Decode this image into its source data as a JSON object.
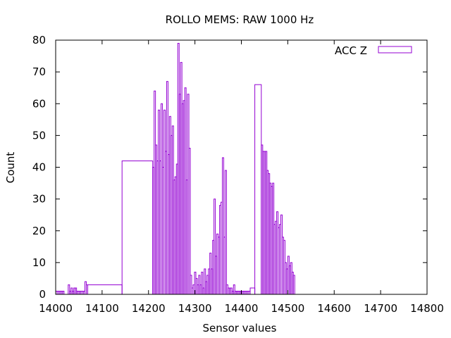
{
  "chart_data": {
    "type": "bar",
    "title": "ROLLO MEMS: RAW 1000 Hz",
    "xlabel": "Sensor values",
    "ylabel": "Count",
    "xlim": [
      14000,
      14800
    ],
    "ylim": [
      0,
      80
    ],
    "xticks": [
      14000,
      14100,
      14200,
      14300,
      14400,
      14500,
      14600,
      14700,
      14800
    ],
    "yticks": [
      0,
      10,
      20,
      30,
      40,
      50,
      60,
      70,
      80
    ],
    "grid": false,
    "legend_position": "top-right",
    "colors": {
      "series": "#9400d3",
      "axes": "#000000"
    },
    "series": [
      {
        "name": "ACC Z",
        "bins": [
          [
            14000,
            14003,
            1
          ],
          [
            14003,
            14006,
            1
          ],
          [
            14006,
            14009,
            1
          ],
          [
            14009,
            14012,
            1
          ],
          [
            14012,
            14015,
            1
          ],
          [
            14015,
            14018,
            1
          ],
          [
            14018,
            14021,
            0
          ],
          [
            14021,
            14024,
            0
          ],
          [
            14024,
            14027,
            0
          ],
          [
            14027,
            14030,
            3
          ],
          [
            14030,
            14033,
            1
          ],
          [
            14033,
            14036,
            2
          ],
          [
            14036,
            14039,
            1
          ],
          [
            14039,
            14042,
            2
          ],
          [
            14042,
            14045,
            2
          ],
          [
            14045,
            14048,
            1
          ],
          [
            14048,
            14051,
            1
          ],
          [
            14051,
            14054,
            1
          ],
          [
            14054,
            14057,
            1
          ],
          [
            14057,
            14060,
            1
          ],
          [
            14060,
            14063,
            1
          ],
          [
            14063,
            14066,
            4
          ],
          [
            14066,
            14069,
            3
          ],
          [
            14069,
            14143,
            3
          ],
          [
            14143,
            14209,
            42
          ],
          [
            14209,
            14212,
            40
          ],
          [
            14212,
            14215,
            64
          ],
          [
            14215,
            14218,
            47
          ],
          [
            14218,
            14221,
            42
          ],
          [
            14221,
            14224,
            58
          ],
          [
            14224,
            14227,
            42
          ],
          [
            14227,
            14230,
            60
          ],
          [
            14230,
            14233,
            40
          ],
          [
            14233,
            14236,
            58
          ],
          [
            14236,
            14239,
            45
          ],
          [
            14239,
            14242,
            67
          ],
          [
            14242,
            14245,
            44
          ],
          [
            14245,
            14248,
            56
          ],
          [
            14248,
            14251,
            50
          ],
          [
            14251,
            14254,
            53
          ],
          [
            14254,
            14257,
            36
          ],
          [
            14257,
            14260,
            37
          ],
          [
            14260,
            14263,
            41
          ],
          [
            14263,
            14266,
            79
          ],
          [
            14266,
            14269,
            63
          ],
          [
            14269,
            14272,
            73
          ],
          [
            14272,
            14275,
            60
          ],
          [
            14275,
            14278,
            61
          ],
          [
            14278,
            14281,
            65
          ],
          [
            14281,
            14284,
            36
          ],
          [
            14284,
            14287,
            63
          ],
          [
            14287,
            14290,
            46
          ],
          [
            14290,
            14293,
            6
          ],
          [
            14293,
            14296,
            2
          ],
          [
            14296,
            14299,
            3
          ],
          [
            14299,
            14302,
            7
          ],
          [
            14302,
            14305,
            5
          ],
          [
            14305,
            14308,
            3
          ],
          [
            14308,
            14311,
            6
          ],
          [
            14311,
            14314,
            3
          ],
          [
            14314,
            14317,
            7
          ],
          [
            14317,
            14320,
            2
          ],
          [
            14320,
            14323,
            8
          ],
          [
            14323,
            14326,
            4
          ],
          [
            14326,
            14329,
            6
          ],
          [
            14329,
            14332,
            8
          ],
          [
            14332,
            14335,
            13
          ],
          [
            14335,
            14338,
            8
          ],
          [
            14338,
            14341,
            17
          ],
          [
            14341,
            14344,
            30
          ],
          [
            14344,
            14347,
            12
          ],
          [
            14347,
            14350,
            19
          ],
          [
            14350,
            14353,
            18
          ],
          [
            14353,
            14356,
            28
          ],
          [
            14356,
            14359,
            29
          ],
          [
            14359,
            14362,
            43
          ],
          [
            14362,
            14365,
            18
          ],
          [
            14365,
            14368,
            39
          ],
          [
            14368,
            14371,
            3
          ],
          [
            14371,
            14374,
            2
          ],
          [
            14374,
            14377,
            2
          ],
          [
            14377,
            14380,
            2
          ],
          [
            14380,
            14383,
            1
          ],
          [
            14383,
            14386,
            3
          ],
          [
            14386,
            14389,
            1
          ],
          [
            14389,
            14392,
            1
          ],
          [
            14392,
            14395,
            1
          ],
          [
            14395,
            14398,
            1
          ],
          [
            14398,
            14401,
            1
          ],
          [
            14401,
            14404,
            1
          ],
          [
            14404,
            14407,
            1
          ],
          [
            14407,
            14410,
            1
          ],
          [
            14410,
            14413,
            1
          ],
          [
            14413,
            14416,
            1
          ],
          [
            14416,
            14419,
            1
          ],
          [
            14419,
            14429,
            2
          ],
          [
            14429,
            14443,
            66
          ],
          [
            14443,
            14446,
            47
          ],
          [
            14446,
            14449,
            45
          ],
          [
            14449,
            14452,
            45
          ],
          [
            14452,
            14455,
            45
          ],
          [
            14455,
            14458,
            39
          ],
          [
            14458,
            14461,
            38
          ],
          [
            14461,
            14464,
            35
          ],
          [
            14464,
            14467,
            34
          ],
          [
            14467,
            14470,
            35
          ],
          [
            14470,
            14473,
            22
          ],
          [
            14473,
            14476,
            23
          ],
          [
            14476,
            14479,
            26
          ],
          [
            14479,
            14482,
            21
          ],
          [
            14482,
            14485,
            22
          ],
          [
            14485,
            14488,
            25
          ],
          [
            14488,
            14491,
            18
          ],
          [
            14491,
            14494,
            17
          ],
          [
            14494,
            14497,
            10
          ],
          [
            14497,
            14500,
            8
          ],
          [
            14500,
            14503,
            12
          ],
          [
            14503,
            14506,
            9
          ],
          [
            14506,
            14509,
            10
          ],
          [
            14509,
            14512,
            7
          ],
          [
            14512,
            14515,
            6
          ]
        ]
      }
    ]
  }
}
